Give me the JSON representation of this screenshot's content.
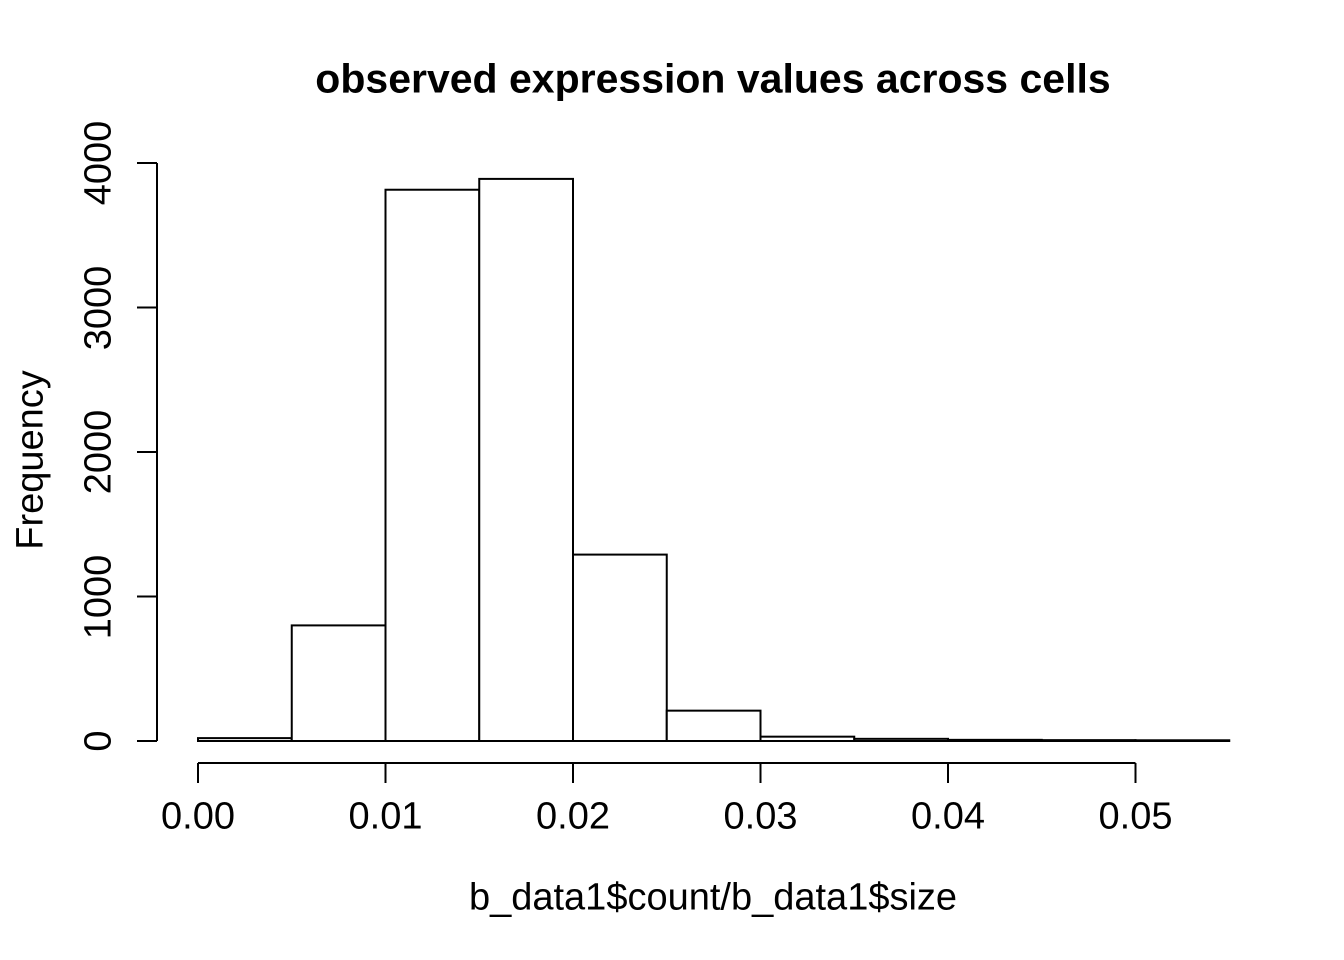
{
  "chart_data": {
    "type": "histogram",
    "title": "observed expression values across cells",
    "xlabel": "b_data1$count/b_data1$size",
    "ylabel": "Frequency",
    "bin_width": 0.005,
    "bins": [
      {
        "start": 0.0,
        "end": 0.005,
        "count": 20
      },
      {
        "start": 0.005,
        "end": 0.01,
        "count": 800
      },
      {
        "start": 0.01,
        "end": 0.015,
        "count": 3815
      },
      {
        "start": 0.015,
        "end": 0.02,
        "count": 3890
      },
      {
        "start": 0.02,
        "end": 0.025,
        "count": 1290
      },
      {
        "start": 0.025,
        "end": 0.03,
        "count": 210
      },
      {
        "start": 0.03,
        "end": 0.035,
        "count": 30
      },
      {
        "start": 0.035,
        "end": 0.04,
        "count": 15
      },
      {
        "start": 0.04,
        "end": 0.045,
        "count": 8
      },
      {
        "start": 0.045,
        "end": 0.05,
        "count": 6
      },
      {
        "start": 0.05,
        "end": 0.055,
        "count": 5
      }
    ],
    "x_ticks": [
      {
        "value": 0.0,
        "label": "0.00"
      },
      {
        "value": 0.01,
        "label": "0.01"
      },
      {
        "value": 0.02,
        "label": "0.02"
      },
      {
        "value": 0.03,
        "label": "0.03"
      },
      {
        "value": 0.04,
        "label": "0.04"
      },
      {
        "value": 0.05,
        "label": "0.05"
      }
    ],
    "y_ticks": [
      {
        "value": 0,
        "label": "0"
      },
      {
        "value": 1000,
        "label": "1000"
      },
      {
        "value": 2000,
        "label": "2000"
      },
      {
        "value": 3000,
        "label": "3000"
      },
      {
        "value": 4000,
        "label": "4000"
      }
    ],
    "xlim": [
      0,
      0.055
    ],
    "ylim": [
      0,
      4000
    ],
    "grid": false,
    "legend": null,
    "bar_fill": "#ffffff",
    "bar_stroke": "#000000",
    "axis_color": "#000000",
    "text_color": "#000000",
    "background": "#ffffff"
  }
}
